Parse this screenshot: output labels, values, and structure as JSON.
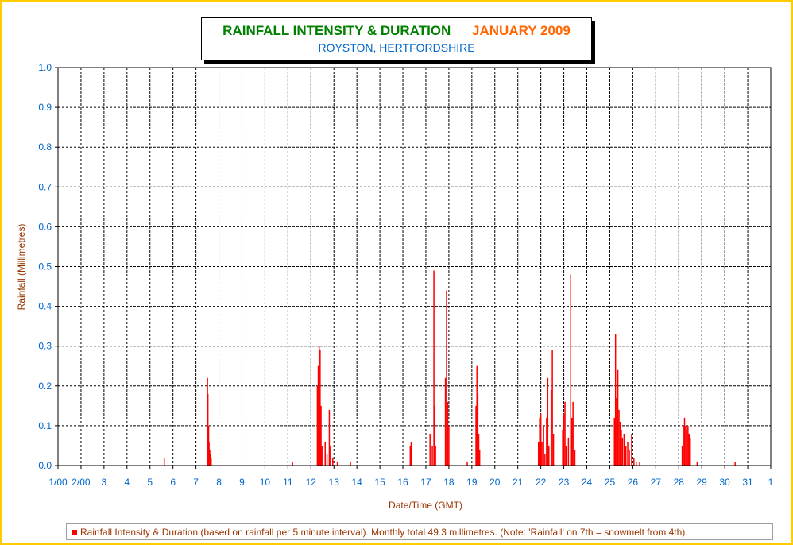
{
  "title": {
    "main": "RAINFALL INTENSITY & DURATION",
    "month": "JANUARY 2009",
    "subtitle": "ROYSTON, HERTFORDSHIRE"
  },
  "chart_data": {
    "type": "bar",
    "title": "RAINFALL INTENSITY & DURATION   JANUARY 2009",
    "subtitle": "ROYSTON, HERTFORDSHIRE",
    "xlabel": "Date/Time (GMT)",
    "ylabel": "Rainfall (Millimetres)",
    "xlim": [
      1,
      32
    ],
    "ylim": [
      0,
      1.0
    ],
    "grid": true,
    "legend_position": "bottom",
    "x_tick_labels": [
      "1/00",
      "2/00",
      "3",
      "4",
      "5",
      "6",
      "7",
      "8",
      "9",
      "10",
      "11",
      "12",
      "13",
      "14",
      "15",
      "16",
      "17",
      "18",
      "19",
      "20",
      "21",
      "22",
      "23",
      "24",
      "25",
      "26",
      "27",
      "28",
      "29",
      "30",
      "31",
      "1"
    ],
    "y_tick_labels": [
      "0.0",
      "0.1",
      "0.2",
      "0.3",
      "0.4",
      "0.5",
      "0.6",
      "0.7",
      "0.8",
      "0.9",
      "1.0"
    ],
    "series": [
      {
        "name": "Rainfall Intensity & Duration (based on rainfall per 5 minute interval). Monthly total 49.3 millimetres. (Note: 'Rainfall' on 7th = snowmelt from 4th).",
        "color": "#ff0000",
        "points": [
          [
            5.62,
            0.02
          ],
          [
            7.5,
            0.22
          ],
          [
            7.52,
            0.18
          ],
          [
            7.55,
            0.1
          ],
          [
            7.57,
            0.06
          ],
          [
            7.6,
            0.04
          ],
          [
            7.63,
            0.03
          ],
          [
            7.66,
            0.02
          ],
          [
            11.2,
            0.01
          ],
          [
            12.28,
            0.2
          ],
          [
            12.32,
            0.25
          ],
          [
            12.36,
            0.3
          ],
          [
            12.4,
            0.29
          ],
          [
            12.44,
            0.15
          ],
          [
            12.48,
            0.05
          ],
          [
            12.62,
            0.06
          ],
          [
            12.7,
            0.03
          ],
          [
            12.8,
            0.14
          ],
          [
            12.85,
            0.05
          ],
          [
            12.95,
            0.02
          ],
          [
            13.15,
            0.01
          ],
          [
            13.72,
            0.01
          ],
          [
            16.32,
            0.05
          ],
          [
            16.36,
            0.06
          ],
          [
            17.18,
            0.08
          ],
          [
            17.28,
            0.05
          ],
          [
            17.35,
            0.49
          ],
          [
            17.38,
            0.15
          ],
          [
            17.42,
            0.05
          ],
          [
            17.85,
            0.22
          ],
          [
            17.9,
            0.44
          ],
          [
            17.95,
            0.16
          ],
          [
            18.0,
            0.1
          ],
          [
            18.8,
            0.01
          ],
          [
            19.18,
            0.15
          ],
          [
            19.22,
            0.25
          ],
          [
            19.26,
            0.18
          ],
          [
            19.3,
            0.08
          ],
          [
            19.34,
            0.04
          ],
          [
            21.9,
            0.06
          ],
          [
            21.95,
            0.12
          ],
          [
            22.0,
            0.13
          ],
          [
            22.05,
            0.06
          ],
          [
            22.12,
            0.1
          ],
          [
            22.18,
            0.03
          ],
          [
            22.25,
            0.12
          ],
          [
            22.3,
            0.22
          ],
          [
            22.35,
            0.05
          ],
          [
            22.45,
            0.19
          ],
          [
            22.5,
            0.29
          ],
          [
            22.55,
            0.08
          ],
          [
            22.95,
            0.09
          ],
          [
            23.0,
            0.13
          ],
          [
            23.05,
            0.16
          ],
          [
            23.1,
            0.05
          ],
          [
            23.2,
            0.07
          ],
          [
            23.3,
            0.48
          ],
          [
            23.35,
            0.12
          ],
          [
            23.4,
            0.16
          ],
          [
            23.48,
            0.04
          ],
          [
            25.2,
            0.12
          ],
          [
            25.25,
            0.33
          ],
          [
            25.3,
            0.17
          ],
          [
            25.35,
            0.24
          ],
          [
            25.4,
            0.14
          ],
          [
            25.45,
            0.11
          ],
          [
            25.5,
            0.09
          ],
          [
            25.55,
            0.07
          ],
          [
            25.62,
            0.08
          ],
          [
            25.7,
            0.05
          ],
          [
            25.78,
            0.06
          ],
          [
            25.85,
            0.04
          ],
          [
            25.95,
            0.08
          ],
          [
            26.05,
            0.02
          ],
          [
            26.15,
            0.01
          ],
          [
            26.3,
            0.01
          ],
          [
            28.15,
            0.05
          ],
          [
            28.2,
            0.1
          ],
          [
            28.25,
            0.12
          ],
          [
            28.3,
            0.1
          ],
          [
            28.35,
            0.09
          ],
          [
            28.4,
            0.1
          ],
          [
            28.45,
            0.08
          ],
          [
            28.5,
            0.07
          ],
          [
            28.8,
            0.01
          ],
          [
            30.45,
            0.01
          ]
        ]
      }
    ]
  },
  "legend": {
    "text": "Rainfall Intensity & Duration (based on rainfall per 5 minute interval). Monthly total 49.3 millimetres. (Note: 'Rainfall' on 7th = snowmelt from 4th)."
  },
  "colors": {
    "frame": "#ffcc00",
    "title_main": "#008000",
    "title_month": "#ff6600",
    "subtitle": "#0066cc",
    "axis_text": "#0066cc",
    "axis_title": "#993300",
    "bars": "#ff0000"
  }
}
